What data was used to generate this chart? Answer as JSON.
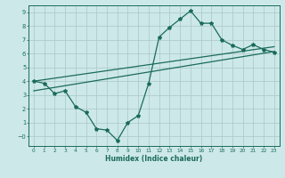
{
  "xlabel": "Humidex (Indice chaleur)",
  "bg_color": "#cde8e8",
  "line_color": "#1a6b5a",
  "grid_color": "#aecccc",
  "xlim": [
    -0.5,
    23.5
  ],
  "ylim": [
    -0.7,
    9.5
  ],
  "xticks": [
    0,
    1,
    2,
    3,
    4,
    5,
    6,
    7,
    8,
    9,
    10,
    11,
    12,
    13,
    14,
    15,
    16,
    17,
    18,
    19,
    20,
    21,
    22,
    23
  ],
  "yticks": [
    0,
    1,
    2,
    3,
    4,
    5,
    6,
    7,
    8,
    9
  ],
  "ytick_labels": [
    "−0",
    "1",
    "2",
    "3",
    "4",
    "5",
    "6",
    "7",
    "8",
    "9"
  ],
  "curve1_x": [
    0,
    1,
    2,
    3,
    4,
    5,
    6,
    7,
    8,
    9,
    10,
    11,
    12,
    13,
    14,
    15,
    16,
    17,
    18,
    19,
    20,
    21,
    22,
    23
  ],
  "curve1_y": [
    4.0,
    3.85,
    3.1,
    3.3,
    2.15,
    1.75,
    0.55,
    0.45,
    -0.3,
    1.0,
    1.5,
    3.85,
    7.2,
    7.9,
    8.5,
    9.1,
    8.2,
    8.2,
    7.0,
    6.6,
    6.3,
    6.65,
    6.3,
    6.1
  ],
  "line2_x": [
    0,
    23
  ],
  "line2_y": [
    4.0,
    6.5
  ],
  "line3_x": [
    0,
    23
  ],
  "line3_y": [
    3.3,
    6.15
  ],
  "marker": "*",
  "markersize": 3.0,
  "linewidth": 0.9
}
